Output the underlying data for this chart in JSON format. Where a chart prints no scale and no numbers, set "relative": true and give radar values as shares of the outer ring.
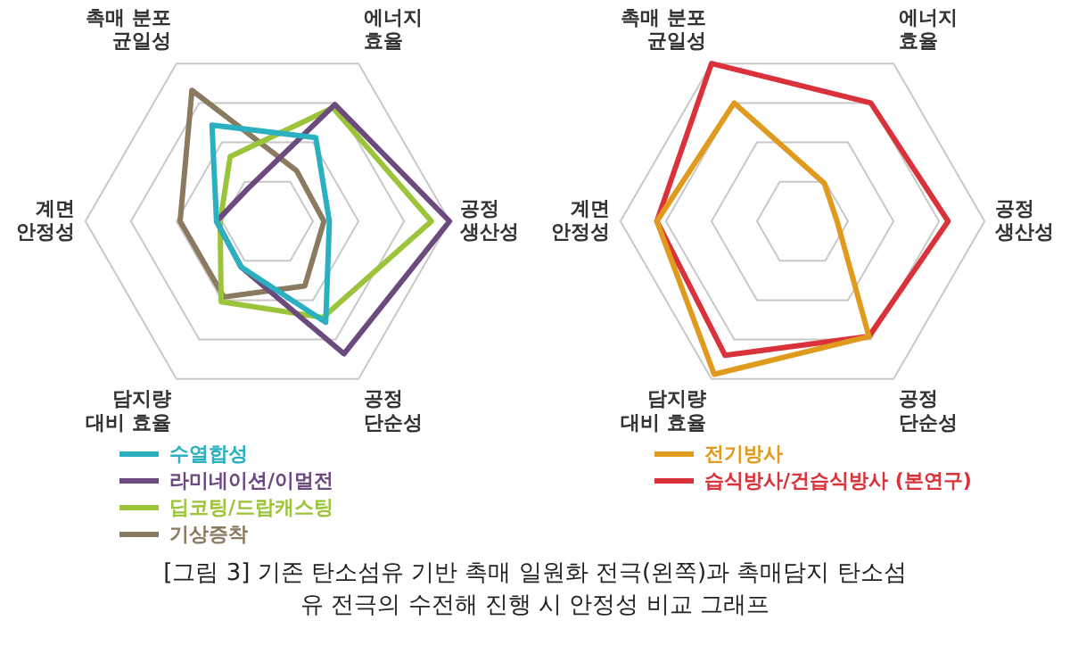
{
  "chart_data": [
    {
      "type": "radar",
      "relative": true,
      "grid": true,
      "legend": "bottom left",
      "marker": "none",
      "line_style": "solid",
      "categories": [
        "촉매 분포\n균일성",
        "에너지\n효율",
        "공정\n생산성",
        "공정\n단순성",
        "담지량\n대비 효율",
        "계면\n안정성"
      ],
      "series": [
        {
          "name": "수열합성",
          "color": "#2ab0c0",
          "values": [
            0.61,
            0.53,
            0.34,
            0.64,
            0.29,
            0.28
          ]
        },
        {
          "name": "라미네이션/이멀전",
          "color": "#6b4a7e",
          "values": [
            0.21,
            0.74,
            1,
            0.84,
            0.29,
            0.28
          ]
        },
        {
          "name": "딥코팅/드랍캐스팅",
          "color": "#9cc43a",
          "values": [
            0.41,
            0.72,
            0.9,
            0.61,
            0.51,
            0.26
          ]
        },
        {
          "name": "기상증착",
          "color": "#8a7a60",
          "values": [
            0.83,
            0.32,
            0.31,
            0.41,
            0.48,
            0.48
          ]
        }
      ],
      "annotations": [
        "[그림 3] 기존 탄소섬유 기반 촉매 일원화 전극(왼쪽)과 촉매담지 탄소섬유 전극의 수전해 진행 시 안정성 비교 그래프"
      ]
    },
    {
      "type": "radar",
      "relative": true,
      "grid": true,
      "legend": "bottom left",
      "marker": "none",
      "line_style": "solid",
      "categories": [
        "촉매 분포\n균일성",
        "에너지\n효율",
        "공정\n생산성",
        "공정\n단순성",
        "담지량\n대비 효율",
        "계면\n안정성"
      ],
      "series": [
        {
          "name": "전기방사",
          "color": "#e09a1e",
          "values": [
            0.75,
            0.24,
            0.19,
            0.73,
            0.97,
            0.8
          ]
        },
        {
          "name": "습식방사/건습식방사 (본연구)",
          "color": "#d9323a",
          "values": [
            1,
            0.75,
            0.8,
            0.73,
            0.85,
            0.8
          ]
        }
      ]
    }
  ]
}
